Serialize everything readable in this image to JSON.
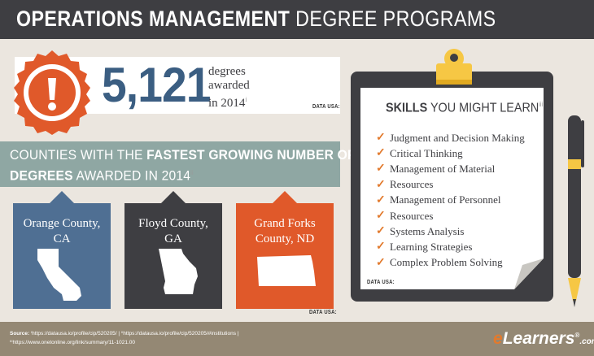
{
  "header": {
    "title_bold": "OPERATIONS MANAGEMENT",
    "title_rest": " DEGREE PROGRAMS"
  },
  "stat": {
    "number": "5,121",
    "line1": "degrees",
    "line2": "awarded",
    "line3": "in 2014",
    "footnote": "i",
    "source": "DATA USA:"
  },
  "counties": {
    "title_line1_pre": "COUNTIES WITH THE ",
    "title_line1_bold": "FASTEST GROWING NUMBER OF",
    "title_line2_bold": "DEGREES",
    "title_line2_rest": " AWARDED IN 2014",
    "footnote": "ii",
    "items": [
      {
        "name_line1": "Orange County,",
        "name_line2": "CA",
        "color": "#4f6f93"
      },
      {
        "name_line1": "Floyd County,",
        "name_line2": "GA",
        "color": "#3e3e42"
      },
      {
        "name_line1": "Grand Forks",
        "name_line2": "County, ND",
        "color": "#e0592a"
      }
    ],
    "source": "DATA USA:"
  },
  "skills": {
    "title_bold": "SKILLS",
    "title_rest": " YOU MIGHT LEARN",
    "footnote": "iii",
    "items": [
      "Judgment and Decision Making",
      "Critical Thinking",
      "Management of Material",
      "Resources",
      "Management of Personnel",
      "Resources",
      "Systems Analysis",
      "Learning Strategies",
      "Complex Problem Solving"
    ],
    "check_icon": "checkmark-icon",
    "source": "DATA USA:"
  },
  "footer": {
    "source_label": "Source:",
    "source_line1": " ⁱhttps://datausa.io/profile/cip/520205/ | ⁱⁱhttps://datausa.io/profile/cip/520205/#institutions |",
    "source_line2": "ⁱⁱⁱhttps://www.onetonline.org/link/summary/11-1021.00",
    "logo_e": "e",
    "logo_rest": "Learners",
    "logo_reg": "®",
    "logo_com": ".com"
  },
  "colors": {
    "dark": "#3e3e42",
    "blue": "#3b5e82",
    "orange": "#e0592a",
    "teal": "#8fa7a3",
    "tan": "#948874"
  },
  "icons": {
    "badge": "exclamation-badge-icon",
    "clipboard": "clipboard-icon",
    "pen": "pen-icon"
  }
}
